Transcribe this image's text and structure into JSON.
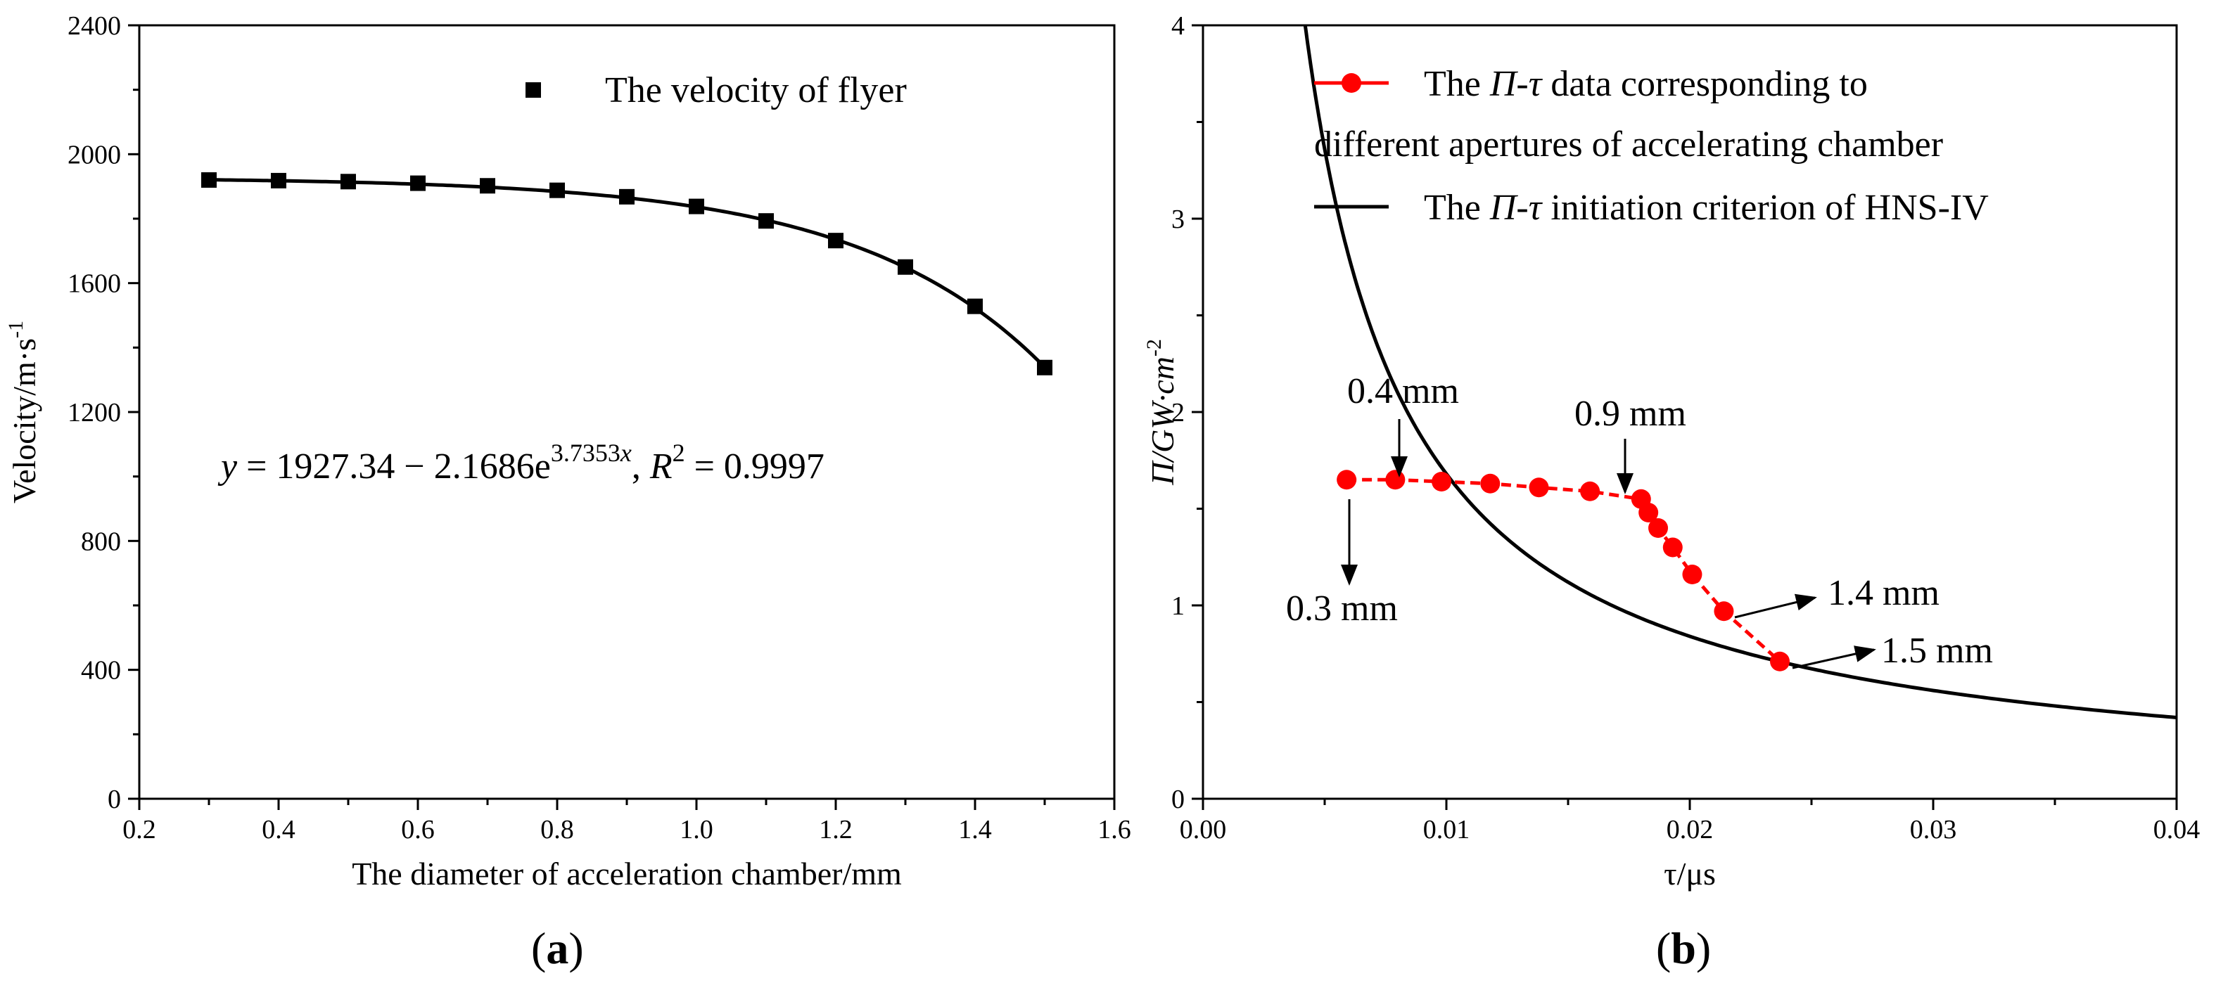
{
  "figure": {
    "panel_a_label": "(a)",
    "panel_b_label": "(b)"
  },
  "chart_data": [
    {
      "type": "scatter",
      "panel": "a",
      "xlabel": "The diameter of acceleration chamber/mm",
      "ylabel": "Velocity/m·s",
      "ylabel_sup": "-1",
      "xlim": [
        0.2,
        1.6
      ],
      "ylim": [
        0,
        2400
      ],
      "xticks": [
        "0.2",
        "0.4",
        "0.6",
        "0.8",
        "1.0",
        "1.2",
        "1.4",
        "1.6"
      ],
      "yticks": [
        "0",
        "400",
        "800",
        "1200",
        "1600",
        "2000",
        "2400"
      ],
      "legend": "The velocity of flyer",
      "x": [
        0.3,
        0.4,
        0.5,
        0.6,
        0.7,
        0.8,
        0.9,
        1.0,
        1.1,
        1.2,
        1.3,
        1.4,
        1.5
      ],
      "values": [
        1920,
        1918,
        1915,
        1910,
        1902,
        1888,
        1868,
        1838,
        1793,
        1732,
        1650,
        1528,
        1338
      ],
      "fit": {
        "a": 1927.34,
        "b": 2.1686,
        "c": 3.7353
      },
      "equation": {
        "y": "y",
        "eq": " = 1927.34 ",
        "minus": " − 2.1686e",
        "exp": "3.7353",
        "x": "x",
        "sep": ",  ",
        "r": "R",
        "r_sup": "2",
        "r_val": " = 0.9997"
      }
    },
    {
      "type": "line",
      "panel": "b",
      "xlabel": "τ/μs",
      "ylabel": "Π/GW·cm",
      "ylabel_sup": "-2",
      "xlim": [
        0,
        0.04
      ],
      "ylim": [
        0,
        4
      ],
      "xticks": [
        "0.00",
        "0.01",
        "0.02",
        "0.03",
        "0.04"
      ],
      "yticks": [
        "0",
        "1",
        "2",
        "3",
        "4"
      ],
      "series": [
        {
          "name": "The Π-τ data corresponding to different apertures of accelerating chamber",
          "legend_line1_a": "The ",
          "legend_line1_i": "Π-τ",
          "legend_line1_b": " data corresponding to",
          "legend_line2": "different apertures of accelerating chamber",
          "color": "#ff0000",
          "x": [
            0.0059,
            0.0079,
            0.0098,
            0.0118,
            0.0138,
            0.0159,
            0.018,
            0.0183,
            0.0187,
            0.0193,
            0.0201,
            0.0214,
            0.0237
          ],
          "y": [
            1.65,
            1.65,
            1.64,
            1.63,
            1.61,
            1.59,
            1.55,
            1.48,
            1.4,
            1.3,
            1.16,
            0.97,
            0.71
          ]
        },
        {
          "name": "The Π-τ initiation criterion of HNS-IV",
          "legend_a": "The ",
          "legend_i": "Π-τ",
          "legend_b": " initiation criterion of HNS-IV",
          "color": "#000000",
          "k": 0.0168,
          "formula": "y = k / x"
        }
      ],
      "annotations": [
        "0.4 mm",
        "0.9 mm",
        "0.3 mm",
        "1.4 mm",
        "1.5 mm"
      ]
    }
  ]
}
